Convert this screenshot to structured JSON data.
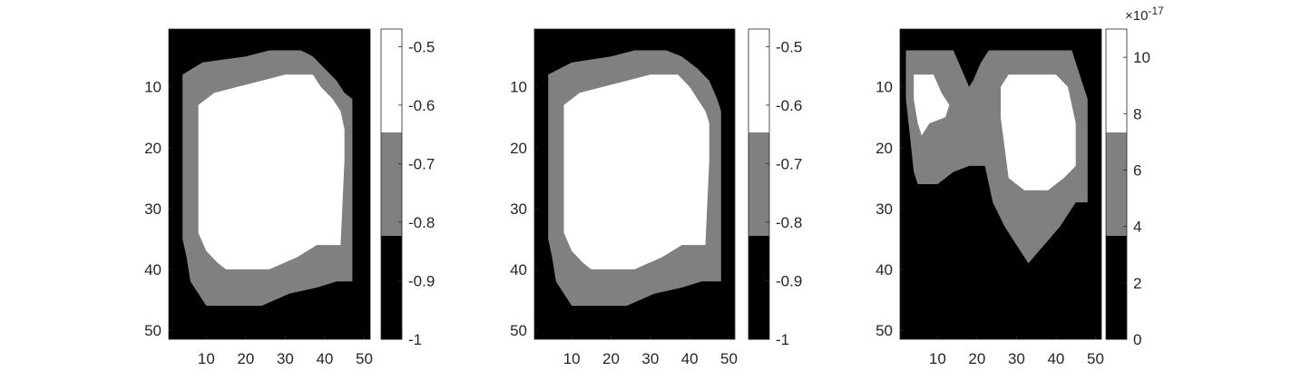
{
  "chart_data": [
    {
      "type": "heatmap",
      "colormap": [
        "#000000",
        "#808080",
        "#ffffff"
      ],
      "x_ticks": [
        "10",
        "20",
        "30",
        "40",
        "50"
      ],
      "y_ticks": [
        "10",
        "20",
        "30",
        "40",
        "50"
      ],
      "x_range": [
        0.5,
        51.5
      ],
      "y_range": [
        0.5,
        51.5
      ],
      "y_direction": "reversed",
      "colorbar": {
        "ticks": [
          "-0.5",
          "-0.6",
          "-0.7",
          "-0.8",
          "-0.9",
          "-1"
        ],
        "range": [
          -1,
          -0.47
        ]
      },
      "levels": [
        "-1",
        "-0.75",
        "-0.5"
      ],
      "outer_region": [
        [
          4,
          8
        ],
        [
          9,
          6
        ],
        [
          20,
          5
        ],
        [
          26,
          4
        ],
        [
          34,
          4
        ],
        [
          37,
          5
        ],
        [
          40,
          7
        ],
        [
          43,
          9
        ],
        [
          45,
          11
        ],
        [
          47,
          12
        ],
        [
          47,
          42
        ],
        [
          43,
          42
        ],
        [
          38,
          43
        ],
        [
          31,
          44
        ],
        [
          24,
          46
        ],
        [
          15,
          46
        ],
        [
          10,
          46
        ],
        [
          6,
          42
        ],
        [
          5,
          38
        ],
        [
          4,
          35
        ]
      ],
      "inner_region": [
        [
          8,
          13
        ],
        [
          10,
          12
        ],
        [
          12,
          11
        ],
        [
          24,
          9
        ],
        [
          30,
          8
        ],
        [
          37,
          8
        ],
        [
          39,
          10
        ],
        [
          42,
          12
        ],
        [
          44,
          14
        ],
        [
          45,
          17
        ],
        [
          45,
          22
        ],
        [
          44,
          36
        ],
        [
          38,
          36
        ],
        [
          33,
          38
        ],
        [
          26,
          40
        ],
        [
          22,
          40
        ],
        [
          15,
          40
        ],
        [
          13,
          39
        ],
        [
          10,
          37
        ],
        [
          8,
          34
        ]
      ]
    },
    {
      "type": "heatmap",
      "colormap": [
        "#000000",
        "#808080",
        "#ffffff"
      ],
      "x_ticks": [
        "10",
        "20",
        "30",
        "40",
        "50"
      ],
      "y_ticks": [
        "10",
        "20",
        "30",
        "40",
        "50"
      ],
      "x_range": [
        0.5,
        51.5
      ],
      "y_range": [
        0.5,
        51.5
      ],
      "y_direction": "reversed",
      "colorbar": {
        "ticks": [
          "-0.5",
          "-0.6",
          "-0.7",
          "-0.8",
          "-0.9",
          "-1"
        ],
        "range": [
          -1,
          -0.47
        ]
      },
      "levels": [
        "-1",
        "-0.75",
        "-0.5"
      ],
      "outer_region": [
        [
          4,
          8
        ],
        [
          10,
          6
        ],
        [
          20,
          5
        ],
        [
          26,
          4
        ],
        [
          34,
          4
        ],
        [
          38,
          5
        ],
        [
          42,
          7
        ],
        [
          45,
          9
        ],
        [
          47,
          12
        ],
        [
          48,
          14
        ],
        [
          48,
          42
        ],
        [
          43,
          42
        ],
        [
          38,
          43
        ],
        [
          31,
          44
        ],
        [
          24,
          46
        ],
        [
          15,
          46
        ],
        [
          10,
          46
        ],
        [
          6,
          42
        ],
        [
          5,
          38
        ],
        [
          4,
          35
        ]
      ],
      "inner_region": [
        [
          8,
          13
        ],
        [
          10,
          12
        ],
        [
          12,
          11
        ],
        [
          24,
          9
        ],
        [
          30,
          8
        ],
        [
          37,
          8
        ],
        [
          40,
          10
        ],
        [
          42,
          12
        ],
        [
          44,
          14
        ],
        [
          45,
          16
        ],
        [
          45,
          22
        ],
        [
          44,
          36
        ],
        [
          38,
          36
        ],
        [
          33,
          38
        ],
        [
          26,
          40
        ],
        [
          22,
          40
        ],
        [
          15,
          40
        ],
        [
          13,
          39
        ],
        [
          10,
          37
        ],
        [
          8,
          34
        ]
      ]
    },
    {
      "type": "heatmap",
      "colormap": [
        "#000000",
        "#808080",
        "#ffffff"
      ],
      "x_ticks": [
        "10",
        "20",
        "30",
        "40",
        "50"
      ],
      "y_ticks": [
        "10",
        "20",
        "30",
        "40",
        "50"
      ],
      "x_range": [
        0.5,
        51.5
      ],
      "y_range": [
        0.5,
        51.5
      ],
      "y_direction": "reversed",
      "colorbar": {
        "ticks": [
          "10",
          "8",
          "6",
          "4",
          "2",
          "0"
        ],
        "range": [
          0,
          11
        ],
        "exponent_base": "×10",
        "exponent": "-17"
      },
      "levels": [
        "0",
        "5.55e-17",
        "11.1e-17"
      ],
      "outer_region": [
        [
          2,
          4
        ],
        [
          14,
          4
        ],
        [
          16,
          7
        ],
        [
          18,
          10
        ],
        [
          19,
          9
        ],
        [
          21,
          6
        ],
        [
          23,
          4
        ],
        [
          44,
          4
        ],
        [
          45,
          6
        ],
        [
          46,
          8
        ],
        [
          47,
          10
        ],
        [
          48,
          12
        ],
        [
          48,
          29
        ],
        [
          45,
          29
        ],
        [
          41,
          33
        ],
        [
          37,
          36
        ],
        [
          33,
          39
        ],
        [
          30,
          36
        ],
        [
          27,
          33
        ],
        [
          24,
          29
        ],
        [
          22,
          23
        ],
        [
          18,
          23
        ],
        [
          14,
          24
        ],
        [
          10,
          26
        ],
        [
          5,
          26
        ],
        [
          4,
          24
        ],
        [
          3,
          18
        ],
        [
          2,
          12
        ]
      ],
      "inner_region_a": [
        [
          4,
          8
        ],
        [
          9,
          8
        ],
        [
          11,
          11
        ],
        [
          13,
          13
        ],
        [
          12,
          15
        ],
        [
          8,
          16
        ],
        [
          6,
          18
        ],
        [
          5,
          16
        ],
        [
          4,
          12
        ]
      ],
      "inner_region_b": [
        [
          26,
          10
        ],
        [
          28,
          8
        ],
        [
          40,
          8
        ],
        [
          43,
          10
        ],
        [
          44,
          13
        ],
        [
          45,
          16
        ],
        [
          45,
          23
        ],
        [
          42,
          25
        ],
        [
          38,
          27
        ],
        [
          32,
          27
        ],
        [
          28,
          25
        ],
        [
          27,
          20
        ],
        [
          26,
          15
        ]
      ]
    }
  ]
}
